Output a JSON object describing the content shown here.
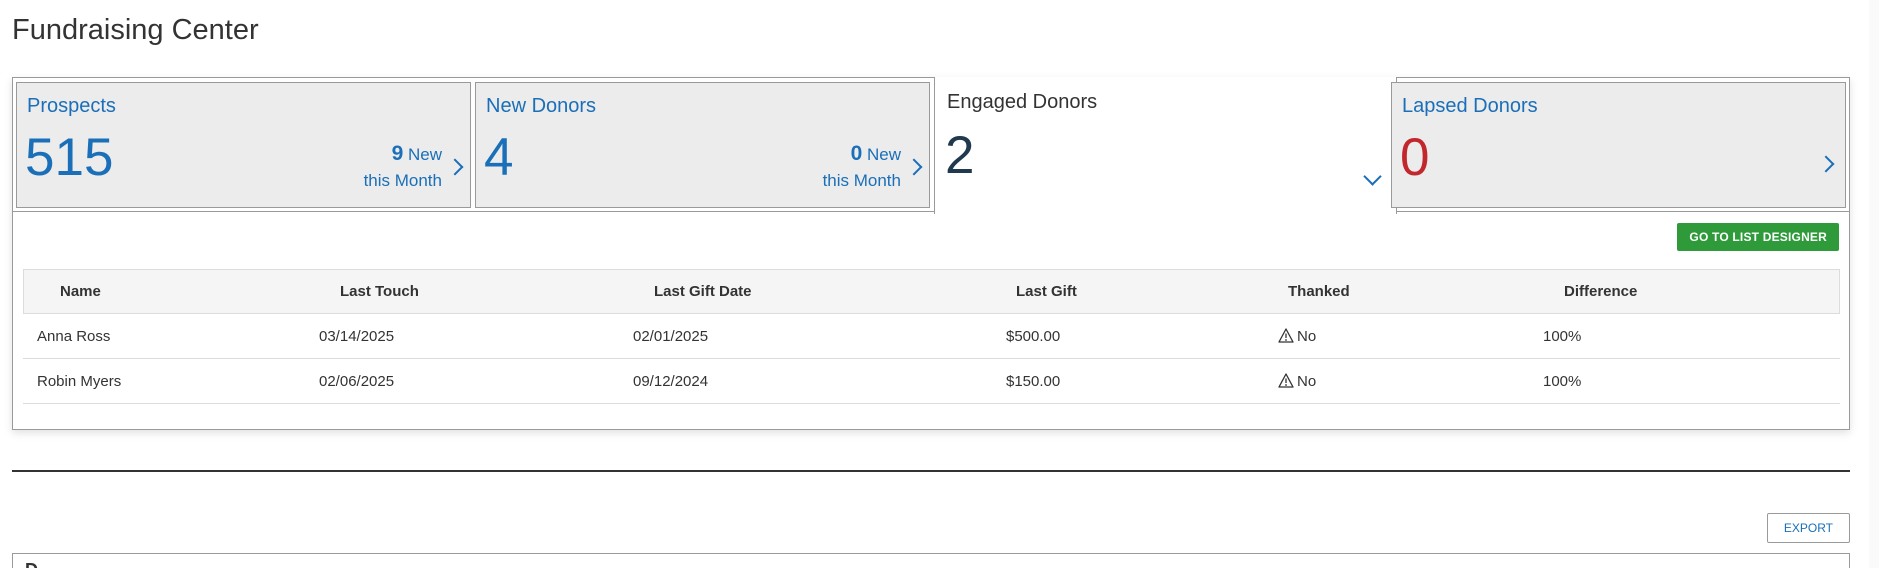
{
  "page": {
    "title": "Fundraising Center"
  },
  "tabs": [
    {
      "label": "Prospects",
      "count": "515",
      "new_count": "9",
      "new_word": "New",
      "new_suffix": "this Month"
    },
    {
      "label": "New Donors",
      "count": "4",
      "new_count": "0",
      "new_word": "New",
      "new_suffix": "this Month"
    },
    {
      "label": "Engaged Donors",
      "count": "2"
    },
    {
      "label": "Lapsed Donors",
      "count": "0"
    }
  ],
  "panel": {
    "designer_button": "GO TO LIST DESIGNER",
    "columns": [
      "Name",
      "Last Touch",
      "Last Gift Date",
      "Last Gift",
      "Thanked",
      "Difference"
    ],
    "rows": [
      {
        "name": "Anna Ross",
        "last_touch": "03/14/2025",
        "last_gift_date": "02/01/2025",
        "last_gift": "$500.00",
        "thanked": "No",
        "difference": "100%"
      },
      {
        "name": "Robin Myers",
        "last_touch": "02/06/2025",
        "last_gift_date": "09/12/2024",
        "last_gift": "$150.00",
        "thanked": "No",
        "difference": "100%"
      }
    ]
  },
  "export_button": "EXPORT",
  "next_section": {
    "label": "D"
  },
  "colors": {
    "link_blue": "#1a6fb8",
    "engaged_count": "#20394f",
    "lapsed_count": "#c1272d",
    "green_button": "#2e9a3a"
  },
  "icons": {
    "tab_arrow": "chevron-right-icon",
    "active_tab_arrow": "chevron-down-icon",
    "thanked_warning": "warning-triangle-icon"
  }
}
